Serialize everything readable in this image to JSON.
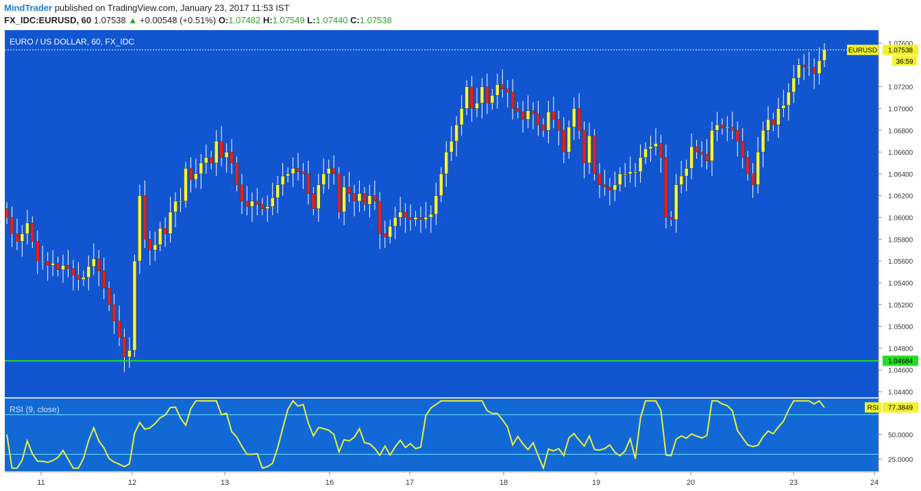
{
  "header": {
    "author": "MindTrader",
    "published_text": "published on TradingView.com, January 23, 2017 11:53 IST",
    "symbol": "FX_IDC:EURUSD, 60",
    "last": "1.07538",
    "change": "+0.00548 (+0.51%)",
    "o_label": "O:",
    "o_val": "1.07482",
    "h_label": "H:",
    "h_val": "1.07549",
    "l_label": "L:",
    "l_val": "1.07440",
    "c_label": "C:",
    "c_val": "1.07538"
  },
  "main_pane": {
    "title": "EURO / US DOLLAR, 60, FX_IDC",
    "price_label_name": "EURUSD",
    "price_label_value": "1.07538",
    "countdown": "36:59",
    "support_line_value": "1.04684",
    "support_line_color": "#22dd22",
    "background_color": "#1155d0"
  },
  "rsi_pane": {
    "title": "RSI (9, close)",
    "label_name": "RSI",
    "label_value": "77.3849",
    "background_color": "#1269d6",
    "line_color": "#e9f03a"
  },
  "chart_data": [
    {
      "type": "candlestick",
      "title": "EURO / US DOLLAR, 60, FX_IDC",
      "y_ticks": [
        "1.04400",
        "1.04600",
        "1.04800",
        "1.05000",
        "1.05200",
        "1.05400",
        "1.05600",
        "1.05800",
        "1.06000",
        "1.06200",
        "1.06400",
        "1.06600",
        "1.06800",
        "1.07000",
        "1.07200",
        "1.07600"
      ],
      "x_ticks": [
        "11",
        "12",
        "13",
        "16",
        "17",
        "18",
        "19",
        "20",
        "23",
        "24"
      ],
      "ylim": [
        1.043,
        1.0775
      ],
      "up_color": "#f5f542",
      "down_color": "#e0202a",
      "horizontal_lines": [
        1.04684,
        1.07538
      ],
      "closes": [
        1.06,
        1.0585,
        1.0578,
        1.0585,
        1.0595,
        1.0578,
        1.056,
        1.056,
        1.0556,
        1.0558,
        1.0552,
        1.0556,
        1.0553,
        1.0547,
        1.0543,
        1.0545,
        1.0555,
        1.0562,
        1.0551,
        1.0535,
        1.052,
        1.0505,
        1.049,
        1.0472,
        1.0478,
        1.056,
        1.062,
        1.058,
        1.057,
        1.0575,
        1.059,
        1.0585,
        1.0605,
        1.0615,
        1.0615,
        1.0645,
        1.0635,
        1.064,
        1.065,
        1.0655,
        1.065,
        1.067,
        1.0655,
        1.066,
        1.065,
        1.063,
        1.0615,
        1.061,
        1.0615,
        1.0612,
        1.0608,
        1.061,
        1.0618,
        1.063,
        1.0638,
        1.064,
        1.0645,
        1.0642,
        1.064,
        1.0622,
        1.0608,
        1.063,
        1.064,
        1.0645,
        1.064,
        1.0605,
        1.0628,
        1.0622,
        1.0615,
        1.0622,
        1.0612,
        1.062,
        1.0615,
        1.0585,
        1.0582,
        1.0592,
        1.06,
        1.0605,
        1.06,
        1.0598,
        1.06,
        1.0598,
        1.06,
        1.0603,
        1.062,
        1.064,
        1.066,
        1.067,
        1.0685,
        1.07,
        1.072,
        1.07,
        1.0705,
        1.072,
        1.0705,
        1.0712,
        1.0722,
        1.0718,
        1.0715,
        1.07,
        1.0697,
        1.069,
        1.0698,
        1.0695,
        1.0685,
        1.068,
        1.0697,
        1.069,
        1.068,
        1.066,
        1.0683,
        1.07,
        1.068,
        1.065,
        1.0675,
        1.064,
        1.063,
        1.0628,
        1.0625,
        1.063,
        1.064,
        1.064,
        1.0642,
        1.0642,
        1.0655,
        1.0663,
        1.0665,
        1.0668,
        1.0655,
        1.06,
        1.0598,
        1.063,
        1.0638,
        1.0645,
        1.0665,
        1.066,
        1.0658,
        1.0652,
        1.068,
        1.0685,
        1.0682,
        1.0683,
        1.068,
        1.067,
        1.0655,
        1.064,
        1.063,
        1.066,
        1.068,
        1.069,
        1.0685,
        1.07,
        1.0703,
        1.0715,
        1.0728,
        1.074,
        1.0738,
        1.0738,
        1.0732,
        1.0744,
        1.0754
      ]
    },
    {
      "type": "line",
      "title": "RSI (9, close)",
      "y_ticks": [
        "25.0000",
        "50.0000"
      ],
      "last_value": 77.3849,
      "ylim": [
        15,
        85
      ],
      "guide_levels": [
        30,
        70
      ]
    }
  ]
}
